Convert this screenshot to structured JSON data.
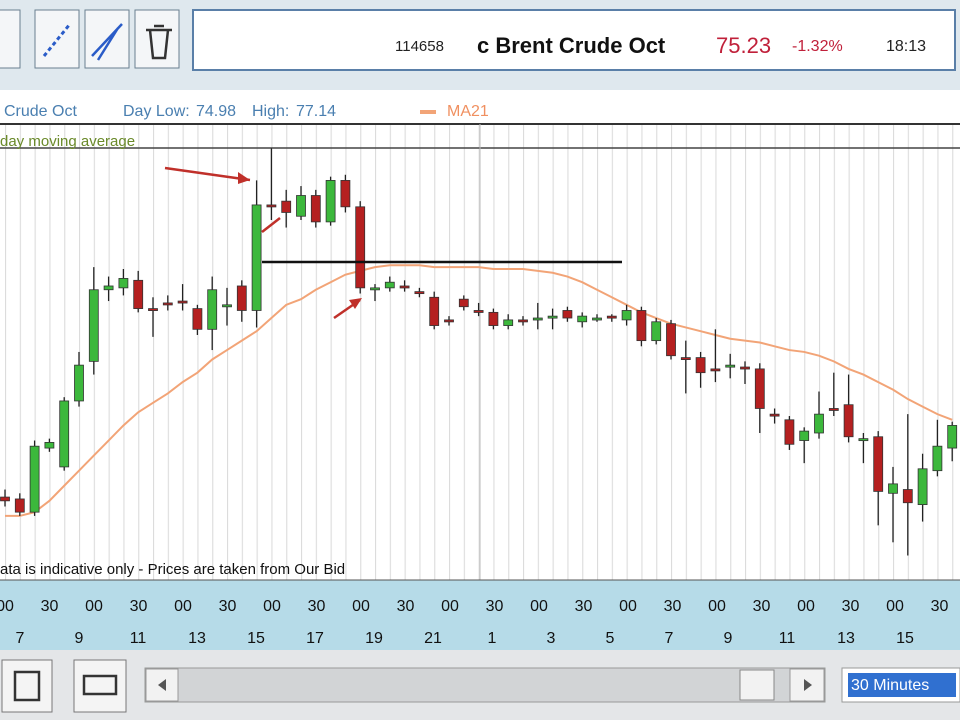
{
  "header": {
    "code": "114658",
    "instrument": "c Brent Crude Oct",
    "price": 75.23,
    "change": "-1.32%",
    "time": "18:13"
  },
  "info": {
    "name": "Crude Oct",
    "day_low_label": "Day Low:",
    "day_low": 74.98,
    "high_label": "High:",
    "high": 77.14
  },
  "chart_data": {
    "type": "candlestick",
    "annotation": "day moving average",
    "footnote": "ata is indicative only - Prices are taken from Our Bid",
    "ylim": [
      74.85,
      77.28
    ],
    "up_color": "#3cb83c",
    "down_color": "#b52020",
    "grid": true,
    "open": [
      75.29,
      75.28,
      75.21,
      75.55,
      75.45,
      75.8,
      76.01,
      76.39,
      76.4,
      76.44,
      76.29,
      76.32,
      76.33,
      76.29,
      76.18,
      76.3,
      76.41,
      76.28,
      76.84,
      76.86,
      76.78,
      76.89,
      76.75,
      76.97,
      76.83,
      76.39,
      76.4,
      76.41,
      76.38,
      76.35,
      76.23,
      76.34,
      76.28,
      76.27,
      76.2,
      76.23,
      76.24,
      76.25,
      76.28,
      76.22,
      76.24,
      76.25,
      76.23,
      76.28,
      76.12,
      76.21,
      76.03,
      76.03,
      75.97,
      75.99,
      75.98,
      75.97,
      75.73,
      75.7,
      75.59,
      75.63,
      75.76,
      75.78,
      75.6,
      75.61,
      75.31,
      75.33,
      75.25,
      75.43,
      75.55
    ],
    "high": [
      75.33,
      75.31,
      75.59,
      75.6,
      75.82,
      76.06,
      76.51,
      76.46,
      76.5,
      76.49,
      76.35,
      76.36,
      76.42,
      76.31,
      76.46,
      76.4,
      76.44,
      76.97,
      77.14,
      76.92,
      76.94,
      76.92,
      76.99,
      77.0,
      76.86,
      76.42,
      76.46,
      76.44,
      76.4,
      76.38,
      76.25,
      76.36,
      76.32,
      76.29,
      76.26,
      76.25,
      76.32,
      76.29,
      76.3,
      76.27,
      76.26,
      76.26,
      76.31,
      76.3,
      76.24,
      76.23,
      76.12,
      76.06,
      76.18,
      76.05,
      76.01,
      76.0,
      75.76,
      75.72,
      75.66,
      75.85,
      75.95,
      75.94,
      75.63,
      75.64,
      75.45,
      75.73,
      75.52,
      75.7,
      75.69
    ],
    "low": [
      75.24,
      75.19,
      75.19,
      75.53,
      75.43,
      75.77,
      75.94,
      76.33,
      76.36,
      76.27,
      76.14,
      76.28,
      76.28,
      76.15,
      76.07,
      76.2,
      76.22,
      76.19,
      76.76,
      76.72,
      76.76,
      76.72,
      76.73,
      76.8,
      76.37,
      76.33,
      76.38,
      76.38,
      76.35,
      76.18,
      76.2,
      76.28,
      76.25,
      76.18,
      76.18,
      76.2,
      76.18,
      76.18,
      76.22,
      76.19,
      76.22,
      76.22,
      76.2,
      76.09,
      76.1,
      76.02,
      75.84,
      75.87,
      75.9,
      75.92,
      75.89,
      75.63,
      75.68,
      75.54,
      75.47,
      75.6,
      75.72,
      75.58,
      75.47,
      75.14,
      75.05,
      74.98,
      75.16,
      75.4,
      75.48
    ],
    "close": [
      75.27,
      75.21,
      75.56,
      75.58,
      75.8,
      75.99,
      76.39,
      76.41,
      76.45,
      76.29,
      76.28,
      76.31,
      76.32,
      76.18,
      76.39,
      76.31,
      76.28,
      76.84,
      76.83,
      76.8,
      76.89,
      76.75,
      76.97,
      76.83,
      76.4,
      76.4,
      76.43,
      76.4,
      76.37,
      76.2,
      76.22,
      76.3,
      76.27,
      76.2,
      76.23,
      76.22,
      76.24,
      76.25,
      76.24,
      76.25,
      76.24,
      76.24,
      76.28,
      76.12,
      76.22,
      76.04,
      76.02,
      75.95,
      75.96,
      75.99,
      75.97,
      75.76,
      75.72,
      75.57,
      75.64,
      75.73,
      75.75,
      75.61,
      75.6,
      75.32,
      75.36,
      75.26,
      75.44,
      75.56,
      75.67
    ],
    "ma": {
      "name": "MA21",
      "color": "#f2a477",
      "values": [
        75.19,
        75.19,
        75.21,
        75.27,
        75.35,
        75.43,
        75.51,
        75.59,
        75.67,
        75.74,
        75.79,
        75.84,
        75.9,
        75.95,
        76.02,
        76.07,
        76.12,
        76.17,
        76.24,
        76.31,
        76.34,
        76.39,
        76.43,
        76.47,
        76.49,
        76.51,
        76.52,
        76.52,
        76.52,
        76.51,
        76.51,
        76.51,
        76.51,
        76.5,
        76.5,
        76.5,
        76.49,
        76.48,
        76.46,
        76.43,
        76.39,
        76.35,
        76.31,
        76.27,
        76.24,
        76.21,
        76.19,
        76.17,
        76.15,
        76.13,
        76.12,
        76.11,
        76.09,
        76.07,
        76.06,
        76.04,
        76.01,
        75.97,
        75.94,
        75.9,
        75.86,
        75.81,
        75.77,
        75.73,
        75.7
      ]
    },
    "times": [
      "00",
      "30",
      "00",
      "30",
      "00",
      "30",
      "00",
      "30",
      "00",
      "30",
      "00",
      "30",
      "00",
      "30",
      "00",
      "30",
      "00",
      "30",
      "00",
      "30",
      "00",
      "30"
    ],
    "dates": [
      7,
      9,
      11,
      13,
      15,
      17,
      19,
      21,
      1,
      3,
      5,
      7,
      9,
      11,
      13,
      15
    ]
  },
  "controls": {
    "interval": "30 Minutes"
  }
}
